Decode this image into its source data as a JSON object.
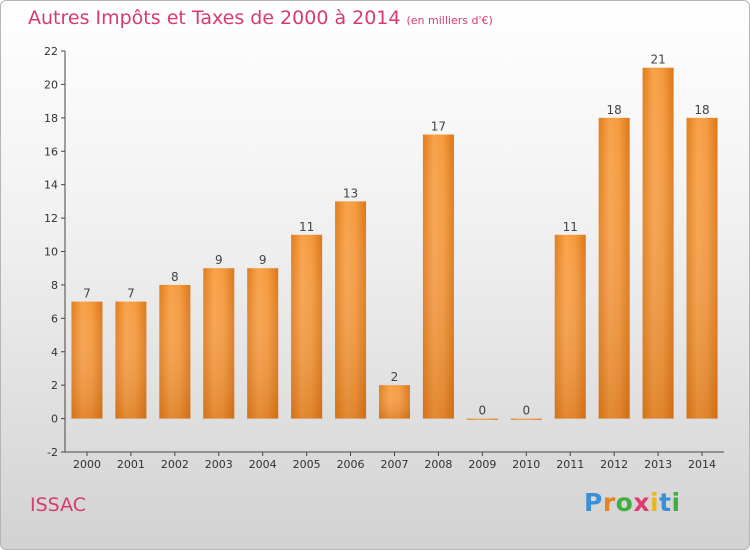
{
  "title": "Autres Impôts et Taxes de 2000 à 2014",
  "unit_note": "(en milliers d'€)",
  "city": "ISSAC",
  "logo": {
    "letters": [
      "P",
      "r",
      "o",
      "x",
      "i",
      "t",
      "i"
    ],
    "colors": [
      "#3b8fd8",
      "#e8821e",
      "#3fae3f",
      "#e23a6f",
      "#e8b81e",
      "#3b8fd8",
      "#3fae3f"
    ]
  },
  "colors": {
    "bar": "#f0902c",
    "bar_highlight": "#f8ac5a",
    "bar_shadow": "#d86e12",
    "title": "#d63c6c"
  },
  "chart_data": {
    "type": "bar",
    "title": "Autres Impôts et Taxes de 2000 à 2014",
    "ylabel": "(en milliers d'€)",
    "categories": [
      "2000",
      "2001",
      "2002",
      "2003",
      "2004",
      "2005",
      "2006",
      "2007",
      "2008",
      "2009",
      "2010",
      "2011",
      "2012",
      "2013",
      "2014"
    ],
    "values": [
      7,
      7,
      8,
      9,
      9,
      11,
      13,
      2,
      17,
      0,
      0,
      11,
      18,
      21,
      18
    ],
    "data_labels": [
      "7",
      "7",
      "8",
      "9",
      "9",
      "11",
      "13",
      "2",
      "17",
      "0",
      "0",
      "11",
      "18",
      "21",
      "18"
    ],
    "ylim": [
      -2,
      22
    ],
    "yticks": [
      -2,
      0,
      2,
      4,
      6,
      8,
      10,
      12,
      14,
      16,
      18,
      20,
      22
    ],
    "grid": false,
    "legend": "none"
  }
}
